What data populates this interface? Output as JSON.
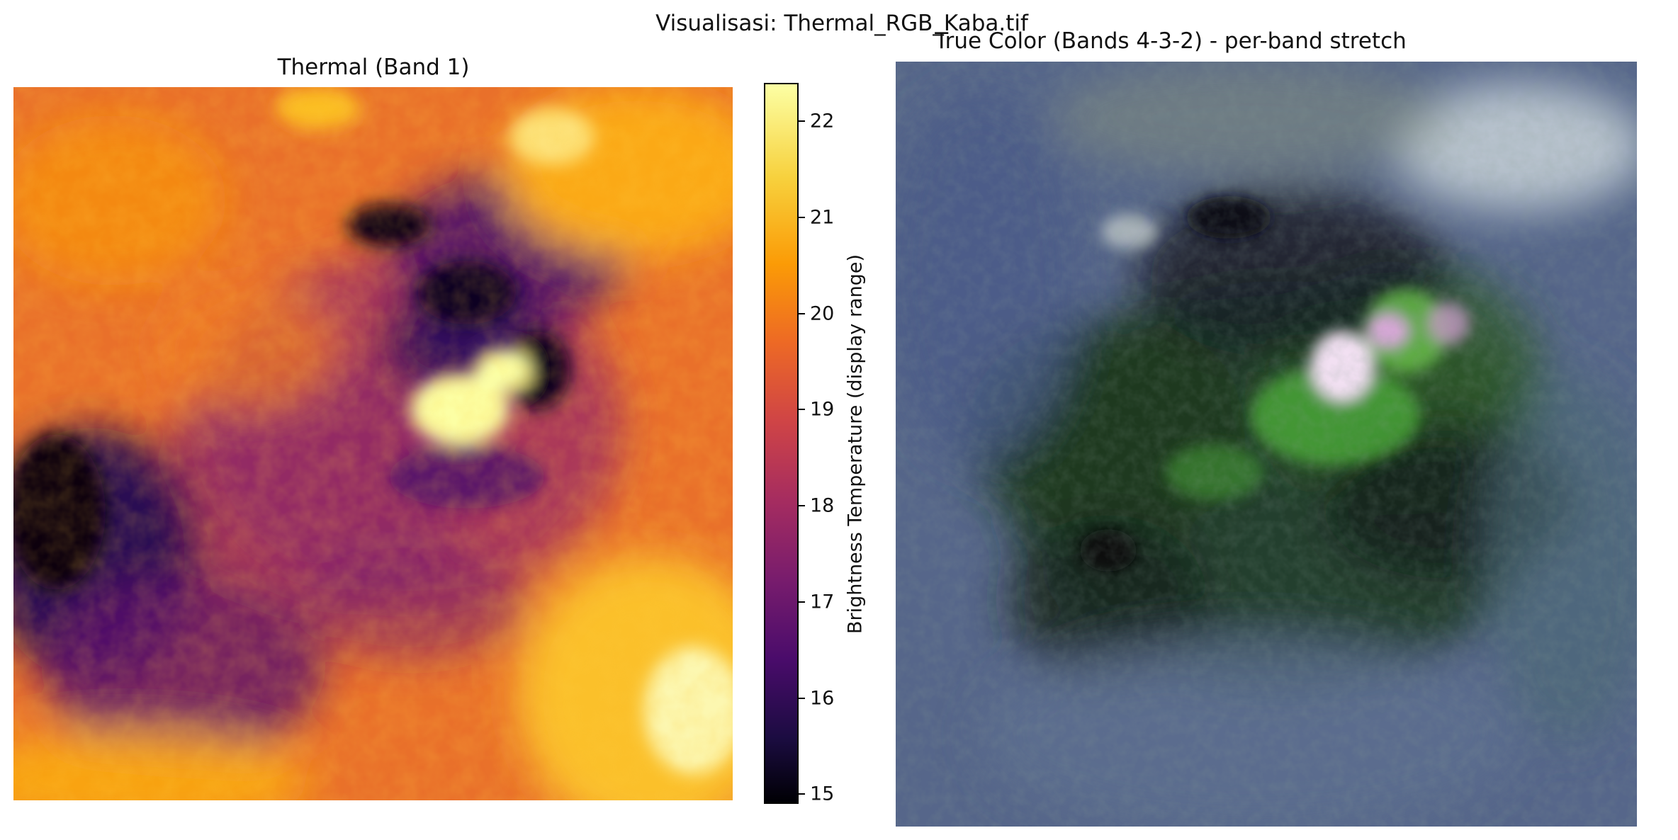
{
  "figure": {
    "suptitle": "Visualisasi: Thermal_RGB_Kaba.tif"
  },
  "thermal_panel": {
    "title": "Thermal (Band 1)",
    "colormap": "inferno",
    "colorbar": {
      "label": "Brightness Temperature (display range)",
      "range": [
        14.9,
        22.4
      ],
      "ticks": [
        {
          "value": 15,
          "label": "15"
        },
        {
          "value": 16,
          "label": "16"
        },
        {
          "value": 17,
          "label": "17"
        },
        {
          "value": 18,
          "label": "18"
        },
        {
          "value": 19,
          "label": "19"
        },
        {
          "value": 20,
          "label": "20"
        },
        {
          "value": 21,
          "label": "21"
        },
        {
          "value": 22,
          "label": "22"
        }
      ]
    },
    "colors": {
      "dark": "#000004",
      "purple": "#4a0c6b",
      "orange": "#ed6925",
      "amber": "#fb9b06",
      "yellow": "#fcffa4"
    }
  },
  "truecolor_panel": {
    "title": "True Color (Bands 4-3-2) - per-band stretch",
    "colors": {
      "blue_gray": "#5a6a8c",
      "dark_green": "#1e3a1e",
      "bright_green": "#4aa83a",
      "crater_pink": "#e6c8e6",
      "haze": "#c8d2d8"
    }
  }
}
